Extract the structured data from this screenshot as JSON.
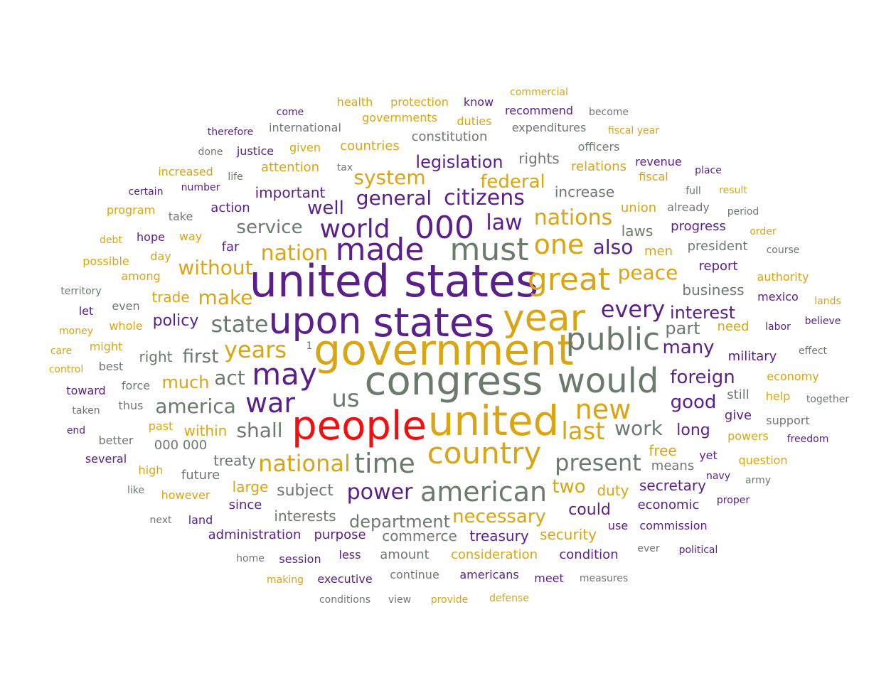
{
  "colors": {
    "purple": "#5a1f8a",
    "gold": "#d9a512",
    "gray": "#6b7b6b",
    "red": "#f10f0f"
  },
  "words": [
    {
      "text": "united states",
      "color": "purple"
    },
    {
      "text": "government",
      "color": "gold"
    },
    {
      "text": "congress",
      "color": "gray"
    },
    {
      "text": "people",
      "color": "red"
    },
    {
      "text": "united",
      "color": "gold"
    },
    {
      "text": "upon",
      "color": "purple"
    },
    {
      "text": "states",
      "color": "purple"
    },
    {
      "text": "year",
      "color": "gold"
    },
    {
      "text": "would",
      "color": "gray"
    },
    {
      "text": "public",
      "color": "gray"
    },
    {
      "text": "great",
      "color": "gold"
    },
    {
      "text": "made",
      "color": "purple"
    },
    {
      "text": "must",
      "color": "gray"
    },
    {
      "text": "000",
      "color": "purple"
    },
    {
      "text": "country",
      "color": "gold"
    },
    {
      "text": "american",
      "color": "gray"
    },
    {
      "text": "may",
      "color": "purple"
    },
    {
      "text": "time",
      "color": "gray"
    },
    {
      "text": "one",
      "color": "gold"
    },
    {
      "text": "war",
      "color": "purple"
    },
    {
      "text": "new",
      "color": "gold"
    },
    {
      "text": "world",
      "color": "purple"
    },
    {
      "text": "us",
      "color": "gray"
    },
    {
      "text": "present",
      "color": "gray"
    },
    {
      "text": "national",
      "color": "gold"
    },
    {
      "text": "last",
      "color": "gold"
    },
    {
      "text": "state",
      "color": "gray"
    },
    {
      "text": "years",
      "color": "gold"
    },
    {
      "text": "every",
      "color": "purple"
    },
    {
      "text": "nations",
      "color": "gold"
    },
    {
      "text": "citizens",
      "color": "purple"
    },
    {
      "text": "general",
      "color": "purple"
    },
    {
      "text": "law",
      "color": "purple"
    },
    {
      "text": "power",
      "color": "purple"
    },
    {
      "text": "nation",
      "color": "gold"
    },
    {
      "text": "peace",
      "color": "gold"
    },
    {
      "text": "work",
      "color": "gray"
    },
    {
      "text": "shall",
      "color": "gray"
    },
    {
      "text": "america",
      "color": "gray"
    },
    {
      "text": "system",
      "color": "gold"
    },
    {
      "text": "necessary",
      "color": "gold"
    },
    {
      "text": "also",
      "color": "purple"
    },
    {
      "text": "many",
      "color": "purple"
    },
    {
      "text": "foreign",
      "color": "purple"
    },
    {
      "text": "well",
      "color": "purple"
    },
    {
      "text": "make",
      "color": "gold"
    },
    {
      "text": "without",
      "color": "gold"
    },
    {
      "text": "act",
      "color": "gray"
    },
    {
      "text": "service",
      "color": "gray"
    },
    {
      "text": "two",
      "color": "gold"
    },
    {
      "text": "federal",
      "color": "gold"
    },
    {
      "text": "legislation",
      "color": "purple"
    },
    {
      "text": "first",
      "color": "gray"
    },
    {
      "text": "good",
      "color": "purple"
    },
    {
      "text": "department",
      "color": "gray"
    },
    {
      "text": "interest",
      "color": "purple"
    },
    {
      "text": "part",
      "color": "gray"
    },
    {
      "text": "much",
      "color": "gold"
    },
    {
      "text": "policy",
      "color": "purple"
    },
    {
      "text": "could",
      "color": "purple"
    },
    {
      "text": "subject",
      "color": "gray"
    },
    {
      "text": "long",
      "color": "purple"
    },
    {
      "text": "treasury",
      "color": "purple"
    },
    {
      "text": "important",
      "color": "purple"
    },
    {
      "text": "increase",
      "color": "gray"
    },
    {
      "text": "treaty",
      "color": "gray"
    },
    {
      "text": "laws",
      "color": "gray"
    },
    {
      "text": "business",
      "color": "gray"
    },
    {
      "text": "duty",
      "color": "gold"
    },
    {
      "text": "secretary",
      "color": "purple"
    },
    {
      "text": "within",
      "color": "gold"
    },
    {
      "text": "large",
      "color": "gold"
    },
    {
      "text": "interests",
      "color": "gray"
    },
    {
      "text": "commerce",
      "color": "gray"
    },
    {
      "text": "purpose",
      "color": "purple"
    },
    {
      "text": "administration",
      "color": "purple"
    },
    {
      "text": "rights",
      "color": "gray"
    },
    {
      "text": "right",
      "color": "gray"
    },
    {
      "text": "trade",
      "color": "gold"
    },
    {
      "text": "free",
      "color": "gold"
    },
    {
      "text": "security",
      "color": "gold"
    },
    {
      "text": "consideration",
      "color": "gold"
    },
    {
      "text": "military",
      "color": "purple"
    },
    {
      "text": "men",
      "color": "gold"
    },
    {
      "text": "progress",
      "color": "purple"
    },
    {
      "text": "union",
      "color": "gold"
    },
    {
      "text": "relations",
      "color": "gold"
    },
    {
      "text": "need",
      "color": "gold"
    },
    {
      "text": "report",
      "color": "purple"
    },
    {
      "text": "president",
      "color": "gray"
    },
    {
      "text": "attention",
      "color": "gold"
    },
    {
      "text": "countries",
      "color": "gold"
    },
    {
      "text": "action",
      "color": "purple"
    },
    {
      "text": "future",
      "color": "gray"
    },
    {
      "text": "since",
      "color": "purple"
    },
    {
      "text": "economic",
      "color": "purple"
    },
    {
      "text": "condition",
      "color": "purple"
    },
    {
      "text": "means",
      "color": "gray"
    },
    {
      "text": "still",
      "color": "gray"
    },
    {
      "text": "give",
      "color": "purple"
    },
    {
      "text": "far",
      "color": "purple"
    },
    {
      "text": "000 000",
      "color": "gray"
    },
    {
      "text": "amount",
      "color": "gray"
    },
    {
      "text": "less",
      "color": "purple"
    },
    {
      "text": "americans",
      "color": "purple"
    },
    {
      "text": "continue",
      "color": "gray"
    },
    {
      "text": "executive",
      "color": "purple"
    },
    {
      "text": "session",
      "color": "purple"
    },
    {
      "text": "constitution",
      "color": "gray"
    },
    {
      "text": "governments",
      "color": "gold"
    },
    {
      "text": "expenditures",
      "color": "gray"
    },
    {
      "text": "officers",
      "color": "gray"
    },
    {
      "text": "international",
      "color": "gray"
    },
    {
      "text": "protection",
      "color": "gold"
    },
    {
      "text": "health",
      "color": "gold"
    },
    {
      "text": "know",
      "color": "purple"
    },
    {
      "text": "recommend",
      "color": "purple"
    },
    {
      "text": "commercial",
      "color": "gold"
    },
    {
      "text": "become",
      "color": "gray"
    },
    {
      "text": "fiscal year",
      "color": "gold"
    },
    {
      "text": "duties",
      "color": "gold"
    },
    {
      "text": "come",
      "color": "purple"
    },
    {
      "text": "therefore",
      "color": "purple"
    },
    {
      "text": "justice",
      "color": "purple"
    },
    {
      "text": "given",
      "color": "gold"
    },
    {
      "text": "done",
      "color": "gray"
    },
    {
      "text": "tax",
      "color": "gray"
    },
    {
      "text": "revenue",
      "color": "purple"
    },
    {
      "text": "fiscal",
      "color": "gold"
    },
    {
      "text": "place",
      "color": "purple"
    },
    {
      "text": "increased",
      "color": "gold"
    },
    {
      "text": "life",
      "color": "gray"
    },
    {
      "text": "number",
      "color": "purple"
    },
    {
      "text": "certain",
      "color": "purple"
    },
    {
      "text": "full",
      "color": "gray"
    },
    {
      "text": "result",
      "color": "gold"
    },
    {
      "text": "already",
      "color": "gray"
    },
    {
      "text": "period",
      "color": "gray"
    },
    {
      "text": "program",
      "color": "gold"
    },
    {
      "text": "take",
      "color": "gray"
    },
    {
      "text": "order",
      "color": "gold"
    },
    {
      "text": "debt",
      "color": "gold"
    },
    {
      "text": "hope",
      "color": "purple"
    },
    {
      "text": "way",
      "color": "gold"
    },
    {
      "text": "course",
      "color": "gray"
    },
    {
      "text": "possible",
      "color": "gold"
    },
    {
      "text": "day",
      "color": "gold"
    },
    {
      "text": "among",
      "color": "gold"
    },
    {
      "text": "authority",
      "color": "gold"
    },
    {
      "text": "territory",
      "color": "gray"
    },
    {
      "text": "mexico",
      "color": "purple"
    },
    {
      "text": "lands",
      "color": "gold"
    },
    {
      "text": "let",
      "color": "purple"
    },
    {
      "text": "even",
      "color": "gray"
    },
    {
      "text": "money",
      "color": "gold"
    },
    {
      "text": "whole",
      "color": "gold"
    },
    {
      "text": "labor",
      "color": "purple"
    },
    {
      "text": "believe",
      "color": "purple"
    },
    {
      "text": "care",
      "color": "gold"
    },
    {
      "text": "might",
      "color": "gold"
    },
    {
      "text": "1",
      "color": "gray"
    },
    {
      "text": "effect",
      "color": "gray"
    },
    {
      "text": "control",
      "color": "gold"
    },
    {
      "text": "best",
      "color": "gray"
    },
    {
      "text": "economy",
      "color": "gold"
    },
    {
      "text": "force",
      "color": "gray"
    },
    {
      "text": "toward",
      "color": "purple"
    },
    {
      "text": "help",
      "color": "gold"
    },
    {
      "text": "together",
      "color": "gray"
    },
    {
      "text": "thus",
      "color": "gray"
    },
    {
      "text": "taken",
      "color": "gray"
    },
    {
      "text": "support",
      "color": "gray"
    },
    {
      "text": "past",
      "color": "gold"
    },
    {
      "text": "end",
      "color": "purple"
    },
    {
      "text": "powers",
      "color": "gold"
    },
    {
      "text": "freedom",
      "color": "purple"
    },
    {
      "text": "better",
      "color": "gray"
    },
    {
      "text": "several",
      "color": "purple"
    },
    {
      "text": "yet",
      "color": "purple"
    },
    {
      "text": "question",
      "color": "gold"
    },
    {
      "text": "high",
      "color": "gold"
    },
    {
      "text": "navy",
      "color": "purple"
    },
    {
      "text": "army",
      "color": "gray"
    },
    {
      "text": "like",
      "color": "gray"
    },
    {
      "text": "however",
      "color": "gold"
    },
    {
      "text": "proper",
      "color": "purple"
    },
    {
      "text": "next",
      "color": "gray"
    },
    {
      "text": "land",
      "color": "purple"
    },
    {
      "text": "use",
      "color": "purple"
    },
    {
      "text": "commission",
      "color": "purple"
    },
    {
      "text": "home",
      "color": "gray"
    },
    {
      "text": "ever",
      "color": "gray"
    },
    {
      "text": "political",
      "color": "purple"
    },
    {
      "text": "making",
      "color": "gold"
    },
    {
      "text": "meet",
      "color": "purple"
    },
    {
      "text": "measures",
      "color": "gray"
    },
    {
      "text": "conditions",
      "color": "gray"
    },
    {
      "text": "view",
      "color": "gray"
    },
    {
      "text": "provide",
      "color": "gold"
    },
    {
      "text": "defense",
      "color": "gold"
    }
  ]
}
